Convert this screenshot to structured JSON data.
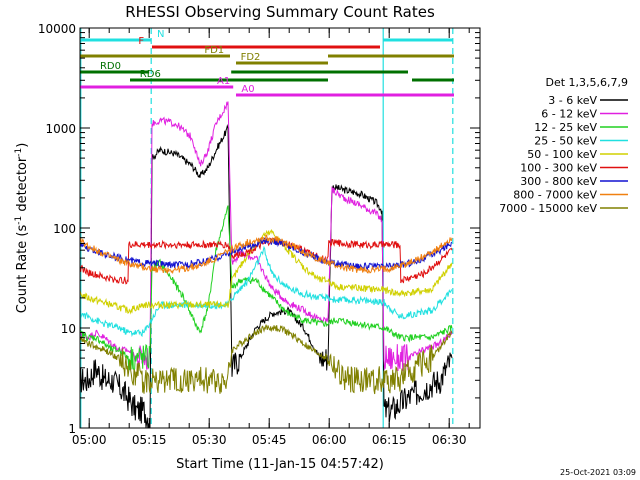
{
  "chart_data": {
    "type": "line",
    "title": "RHESSI Observing Summary Count Rates",
    "xlabel": "Start Time (11-Jan-15 04:57:42)",
    "ylabel_main": "Count Rate (s",
    "ylabel_sup1": "-1",
    "ylabel_mid": " detector",
    "ylabel_sup2": "-1",
    "ylabel_end": ")",
    "footer": "25-Oct-2021 03:09",
    "x_range_min": [
      0,
      100
    ],
    "x_ticks": [
      {
        "t": 2.3,
        "label": "05:00"
      },
      {
        "t": 17.3,
        "label": "05:15"
      },
      {
        "t": 32.3,
        "label": "05:30"
      },
      {
        "t": 47.3,
        "label": "05:45"
      },
      {
        "t": 62.3,
        "label": "06:00"
      },
      {
        "t": 77.3,
        "label": "06:15"
      },
      {
        "t": 92.3,
        "label": "06:30"
      }
    ],
    "y_scale": "log",
    "y_range": [
      1,
      10000
    ],
    "y_ticks": [
      {
        "v": 1,
        "label": "1"
      },
      {
        "v": 10,
        "label": "10"
      },
      {
        "v": 100,
        "label": "100"
      },
      {
        "v": 1000,
        "label": "1000"
      },
      {
        "v": 10000,
        "label": "10000"
      }
    ],
    "legend": {
      "title": "Det 1,3,5,6,7,9",
      "placement": "right",
      "entries": [
        {
          "label": "3 - 6 keV",
          "color": "#000000"
        },
        {
          "label": "6 - 12 keV",
          "color": "#e020e0"
        },
        {
          "label": "12 - 25 keV",
          "color": "#20d020"
        },
        {
          "label": "25 - 50 keV",
          "color": "#20e0e0"
        },
        {
          "label": "50 - 100 keV",
          "color": "#d0d000"
        },
        {
          "label": "100 - 300 keV",
          "color": "#e01010"
        },
        {
          "label": "300 - 800 keV",
          "color": "#1010d0"
        },
        {
          "label": "800 - 7000 keV",
          "color": "#f08010"
        },
        {
          "label": "7000 - 15000 keV",
          "color": "#808000"
        }
      ]
    },
    "vlines": [
      {
        "t": 0.2,
        "style": "solid",
        "color": "#20e0e0"
      },
      {
        "t": 17.8,
        "style": "dashed",
        "color": "#20e0e0"
      },
      {
        "t": 75.8,
        "style": "solid",
        "color": "#20e0e0"
      },
      {
        "t": 93.2,
        "style": "dashed",
        "color": "#20e0e0"
      }
    ],
    "flag_bars": [
      {
        "label": "N",
        "color": "#20e0e0",
        "y": 12,
        "segments": [
          [
            0,
            17.8
          ],
          [
            75.8,
            93.2
          ]
        ],
        "label_t": 18.5,
        "label_side": "right"
      },
      {
        "label": "F",
        "color": "#e01010",
        "y": 19,
        "segments": [
          [
            18.0,
            75.0
          ]
        ],
        "label_t": 16.8,
        "label_side": "left"
      },
      {
        "label": "FD1",
        "color": "#808000",
        "y": 28,
        "segments": [
          [
            0,
            37.5
          ],
          [
            62.0,
            93.5
          ]
        ],
        "label_t": 36.8,
        "label_side": "left"
      },
      {
        "label": "FD2",
        "color": "#808000",
        "y": 35,
        "segments": [
          [
            39.0,
            62.0
          ]
        ],
        "label_t": 39.4,
        "label_side": "right"
      },
      {
        "label": "RD0",
        "color": "#007000",
        "y": 44,
        "segments": [
          [
            0,
            17.3
          ],
          [
            37.8,
            62.0
          ],
          [
            62.0,
            82.0
          ]
        ],
        "label_t": 11.0,
        "label_side": "left"
      },
      {
        "label": "RD6",
        "color": "#007000",
        "y": 52,
        "segments": [
          [
            12.5,
            62.0
          ],
          [
            83.0,
            93.5
          ]
        ],
        "label_t": 14.2,
        "label_side": "right"
      },
      {
        "label": "A1",
        "color": "#e020e0",
        "y": 59,
        "segments": [
          [
            0,
            38.3
          ]
        ],
        "label_t": 38.3,
        "label_side": "left"
      },
      {
        "label": "A0",
        "color": "#e020e0",
        "y": 67,
        "segments": [
          [
            39.0,
            62.0
          ],
          [
            62.0,
            93.5
          ]
        ],
        "label_t": 39.6,
        "label_side": "right"
      }
    ],
    "series": [
      {
        "name": "3 - 6 keV",
        "color": "#000000",
        "x": [
          0,
          2,
          4,
          6,
          8,
          10,
          12,
          14,
          16,
          17.5,
          18,
          20,
          24,
          28,
          30,
          32,
          34,
          37,
          38,
          40,
          44,
          48,
          52,
          56,
          60,
          62,
          63,
          66,
          70,
          74,
          75.5,
          76,
          78,
          82,
          86,
          90,
          93
        ],
        "y": [
          3,
          3,
          4,
          3,
          3,
          2.5,
          2,
          1.5,
          1.5,
          1.2,
          500,
          600,
          550,
          420,
          330,
          400,
          600,
          1000,
          4,
          5,
          10,
          14,
          15,
          10,
          5,
          5,
          260,
          240,
          220,
          180,
          150,
          1.5,
          1.5,
          2,
          2.5,
          3,
          5
        ]
      },
      {
        "name": "6 - 12 keV",
        "color": "#e020e0",
        "x": [
          0,
          2,
          4,
          6,
          8,
          10,
          12,
          14,
          16,
          17.5,
          18,
          20,
          24,
          28,
          30,
          32,
          34,
          37,
          38,
          40,
          44,
          48,
          52,
          56,
          60,
          62,
          63,
          66,
          70,
          74,
          75.5,
          76,
          78,
          82,
          86,
          90,
          93
        ],
        "y": [
          9,
          8,
          9,
          8,
          7,
          6,
          6,
          5,
          5,
          5,
          1100,
          1200,
          1100,
          800,
          420,
          600,
          1100,
          1800,
          45,
          55,
          50,
          25,
          18,
          15,
          12,
          12,
          240,
          200,
          170,
          140,
          120,
          5,
          5,
          5,
          6,
          7,
          9
        ]
      },
      {
        "name": "12 - 25 keV",
        "color": "#20d020",
        "x": [
          0,
          2,
          4,
          6,
          8,
          10,
          12,
          14,
          16,
          17.5,
          18,
          20,
          22,
          26,
          28,
          30,
          32,
          34,
          37,
          38,
          40,
          44,
          48,
          52,
          56,
          60,
          62,
          64,
          70,
          76,
          80,
          84,
          88,
          93
        ],
        "y": [
          9,
          8,
          8,
          7,
          6,
          6,
          5,
          5,
          5,
          5,
          40,
          45,
          35,
          20,
          13,
          9,
          16,
          60,
          160,
          25,
          30,
          30,
          20,
          14,
          12,
          11,
          11,
          12,
          11,
          10,
          8,
          8,
          8,
          10
        ]
      },
      {
        "name": "25 - 50 keV",
        "color": "#20e0e0",
        "x": [
          0,
          2,
          6,
          10,
          12,
          16,
          20,
          30,
          37,
          38,
          42,
          46,
          48,
          52,
          56,
          60,
          62,
          64,
          70,
          76,
          80,
          88,
          93
        ],
        "y": [
          14,
          13,
          11,
          10,
          9,
          9,
          17,
          17,
          17,
          20,
          30,
          60,
          35,
          25,
          22,
          20,
          20,
          19,
          19,
          18,
          13,
          15,
          24
        ]
      },
      {
        "name": "50 - 100 keV",
        "color": "#d0d000",
        "x": [
          0,
          2,
          6,
          10,
          12,
          16,
          20,
          30,
          37,
          38,
          42,
          46,
          48,
          52,
          56,
          60,
          62,
          64,
          70,
          76,
          80,
          88,
          93
        ],
        "y": [
          22,
          20,
          18,
          16,
          15,
          17,
          17,
          17,
          17,
          30,
          55,
          85,
          90,
          60,
          40,
          30,
          30,
          26,
          25,
          24,
          22,
          24,
          45
        ]
      },
      {
        "name": "100 - 300 keV",
        "color": "#e01010",
        "x": [
          0,
          2,
          6,
          10,
          12,
          12.2,
          20,
          30,
          37,
          38,
          42,
          48,
          54,
          60,
          62,
          62.2,
          70,
          76,
          80,
          80.2,
          86,
          93
        ],
        "y": [
          40,
          36,
          32,
          30,
          30,
          68,
          68,
          68,
          68,
          52,
          58,
          75,
          65,
          50,
          48,
          72,
          68,
          68,
          68,
          30,
          35,
          60
        ]
      },
      {
        "name": "300 - 800 keV",
        "color": "#1010d0",
        "x": [
          0,
          2,
          6,
          10,
          14,
          18,
          22,
          26,
          30,
          34,
          38,
          42,
          46,
          50,
          54,
          58,
          62,
          66,
          70,
          74,
          78,
          82,
          86,
          90,
          93
        ],
        "y": [
          70,
          62,
          55,
          50,
          46,
          44,
          43,
          43,
          45,
          50,
          58,
          65,
          75,
          72,
          62,
          52,
          46,
          43,
          42,
          41,
          42,
          44,
          50,
          60,
          72
        ]
      },
      {
        "name": "800 - 7000 keV",
        "color": "#f08010",
        "x": [
          0,
          2,
          6,
          10,
          14,
          18,
          22,
          26,
          30,
          34,
          38,
          42,
          46,
          50,
          54,
          58,
          62,
          66,
          70,
          74,
          78,
          82,
          86,
          90,
          93
        ],
        "y": [
          75,
          66,
          55,
          47,
          42,
          39,
          38,
          39,
          42,
          50,
          62,
          72,
          80,
          75,
          64,
          52,
          45,
          40,
          38,
          38,
          40,
          44,
          52,
          64,
          80
        ]
      },
      {
        "name": "7000 - 15000 keV",
        "color": "#808000",
        "x": [
          0,
          2,
          6,
          10,
          12,
          14,
          16,
          18,
          22,
          26,
          30,
          34,
          37,
          38,
          42,
          46,
          50,
          54,
          58,
          62,
          66,
          70,
          76,
          80,
          84,
          88,
          93
        ],
        "y": [
          8,
          7,
          6,
          5,
          4,
          3.5,
          3,
          3,
          3,
          3,
          3,
          3,
          3,
          6,
          8,
          10,
          10,
          8,
          6,
          5,
          3,
          3,
          3,
          3,
          4,
          5,
          9
        ]
      }
    ]
  }
}
